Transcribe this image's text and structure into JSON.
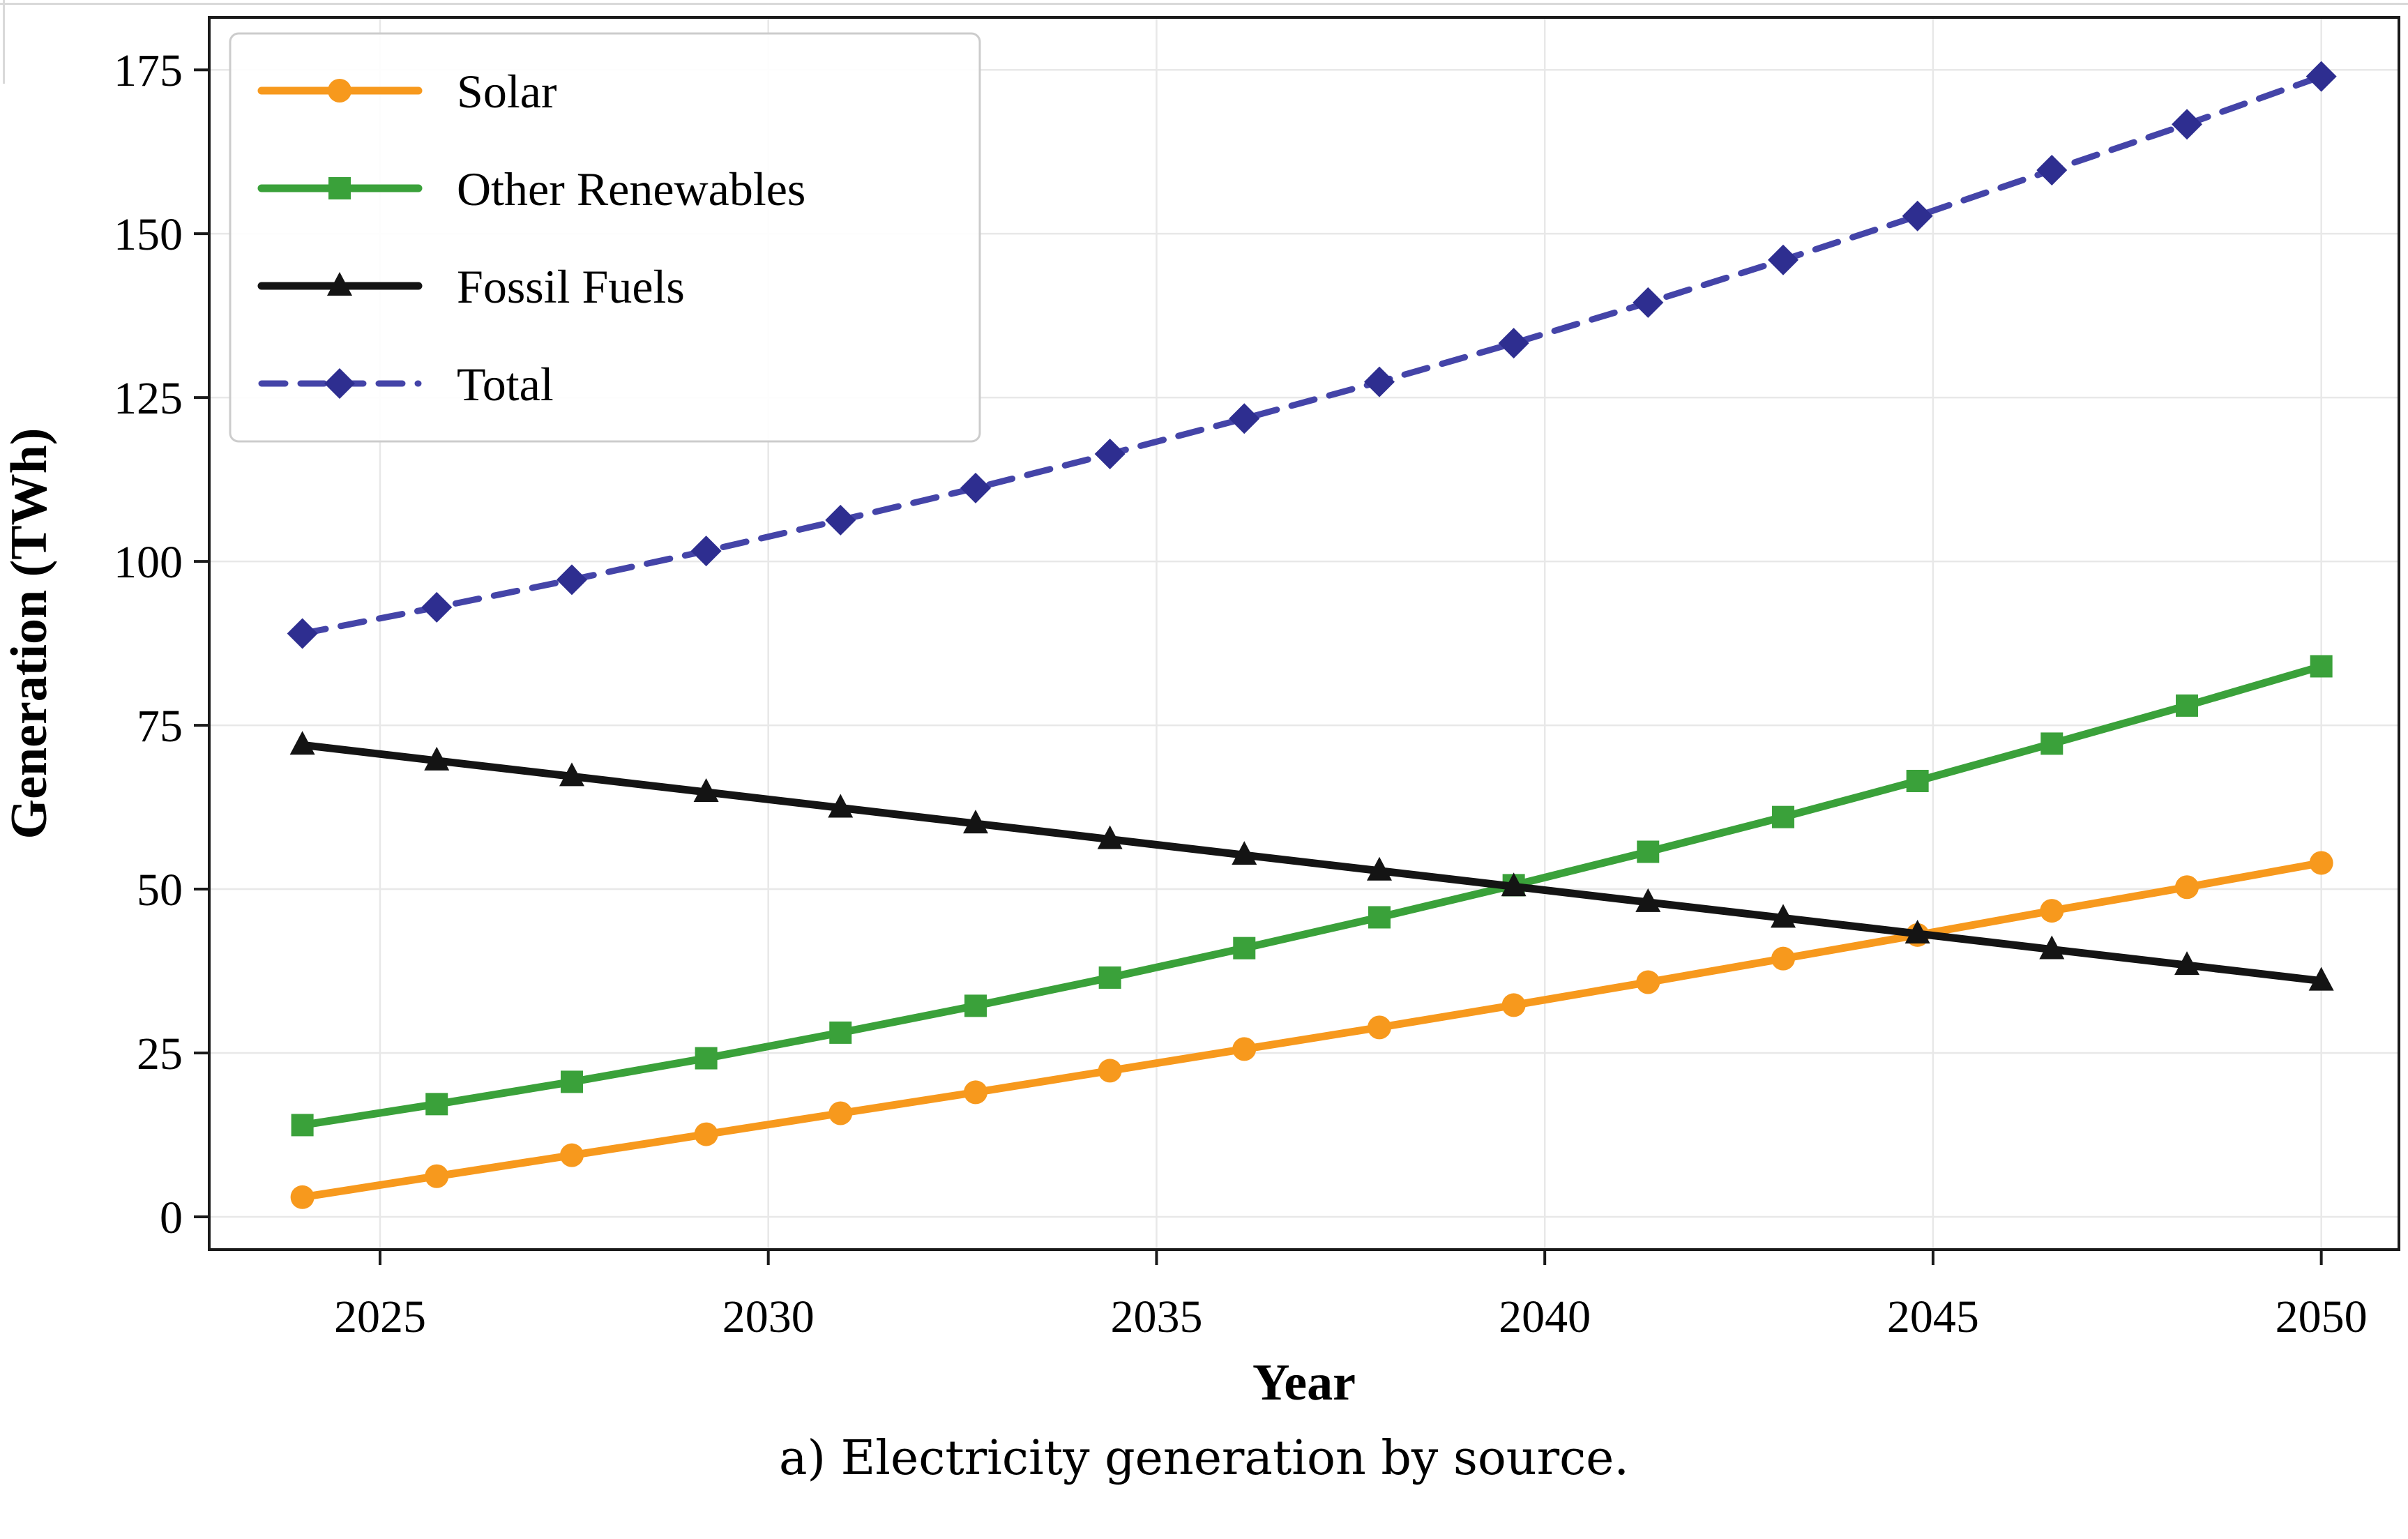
{
  "figure": {
    "caption": "a) Electricity generation by source."
  },
  "chart_data": {
    "type": "line",
    "title": "",
    "xlabel": "Year",
    "ylabel": "Generation (TWh)",
    "xlim": [
      2022.8,
      2051.0
    ],
    "ylim": [
      -5,
      183
    ],
    "x_ticks": [
      2025,
      2030,
      2035,
      2040,
      2045,
      2050
    ],
    "y_ticks": [
      0,
      25,
      50,
      75,
      100,
      125,
      150,
      175
    ],
    "grid": true,
    "grid_color": "#e8e8e8",
    "spine_color": "#1a1a1a",
    "legend_position": "upper-left",
    "x": [
      2024,
      2025.73,
      2027.47,
      2029.2,
      2030.93,
      2032.67,
      2034.4,
      2036.13,
      2037.87,
      2039.6,
      2041.33,
      2043.07,
      2044.8,
      2046.53,
      2048.27,
      2050
    ],
    "series": [
      {
        "name": "Solar",
        "color": "#f7991d",
        "marker": "circle",
        "line_style": "solid",
        "values": [
          3,
          6.2,
          9.4,
          12.6,
          15.8,
          19,
          22.3,
          25.6,
          28.9,
          32.3,
          35.8,
          39.4,
          43,
          46.7,
          50.3,
          54
        ]
      },
      {
        "name": "Other Renewables",
        "color": "#3aa13a",
        "marker": "square",
        "line_style": "solid",
        "values": [
          14,
          17.2,
          20.6,
          24.2,
          28.1,
          32.2,
          36.5,
          41,
          45.7,
          50.6,
          55.7,
          61,
          66.5,
          72.2,
          78,
          84
        ]
      },
      {
        "name": "Fossil Fuels",
        "color": "#141414",
        "marker": "triangle",
        "line_style": "solid",
        "values": [
          72,
          69.6,
          67.2,
          64.8,
          62.4,
          60,
          57.6,
          55.2,
          52.8,
          50.4,
          48,
          45.6,
          43.2,
          40.8,
          38.4,
          36
        ]
      },
      {
        "name": "Total",
        "color": "#4444a8",
        "marker_color": "#2e2e90",
        "marker": "diamond",
        "line_style": "dashed",
        "values": [
          89,
          93,
          97.2,
          101.6,
          106.3,
          111.2,
          116.4,
          121.8,
          127.4,
          133.3,
          139.5,
          146,
          152.7,
          159.7,
          166.7,
          174
        ]
      }
    ]
  }
}
